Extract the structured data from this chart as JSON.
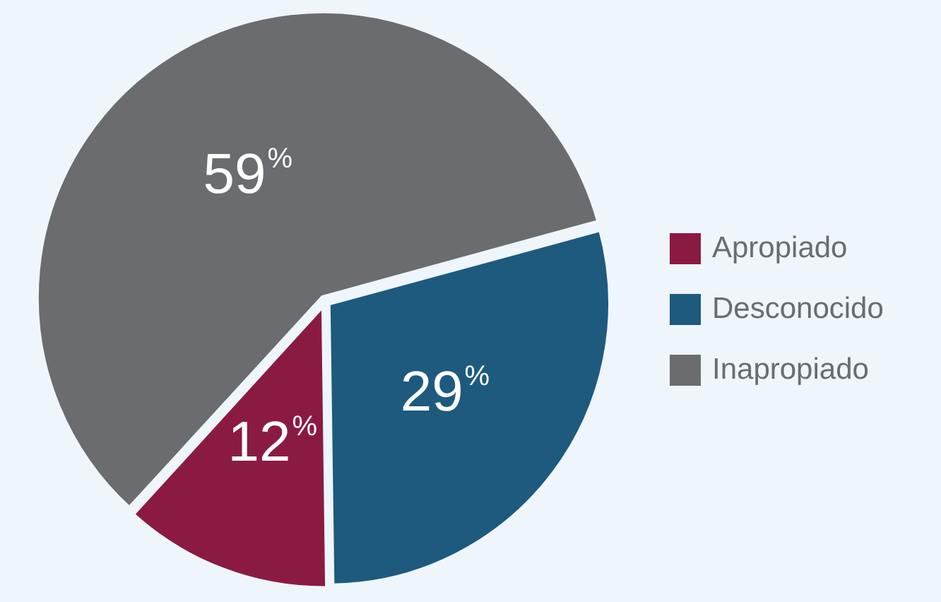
{
  "chart_data": {
    "type": "pie",
    "categories": [
      "Apropiado",
      "Desconocido",
      "Inapropiado"
    ],
    "values": [
      12,
      29,
      59
    ],
    "colors": [
      "#8b1a42",
      "#1d5a7e",
      "#6b6c70"
    ],
    "value_labels": [
      "12%",
      "29%",
      "59%"
    ],
    "legend": "right"
  }
}
